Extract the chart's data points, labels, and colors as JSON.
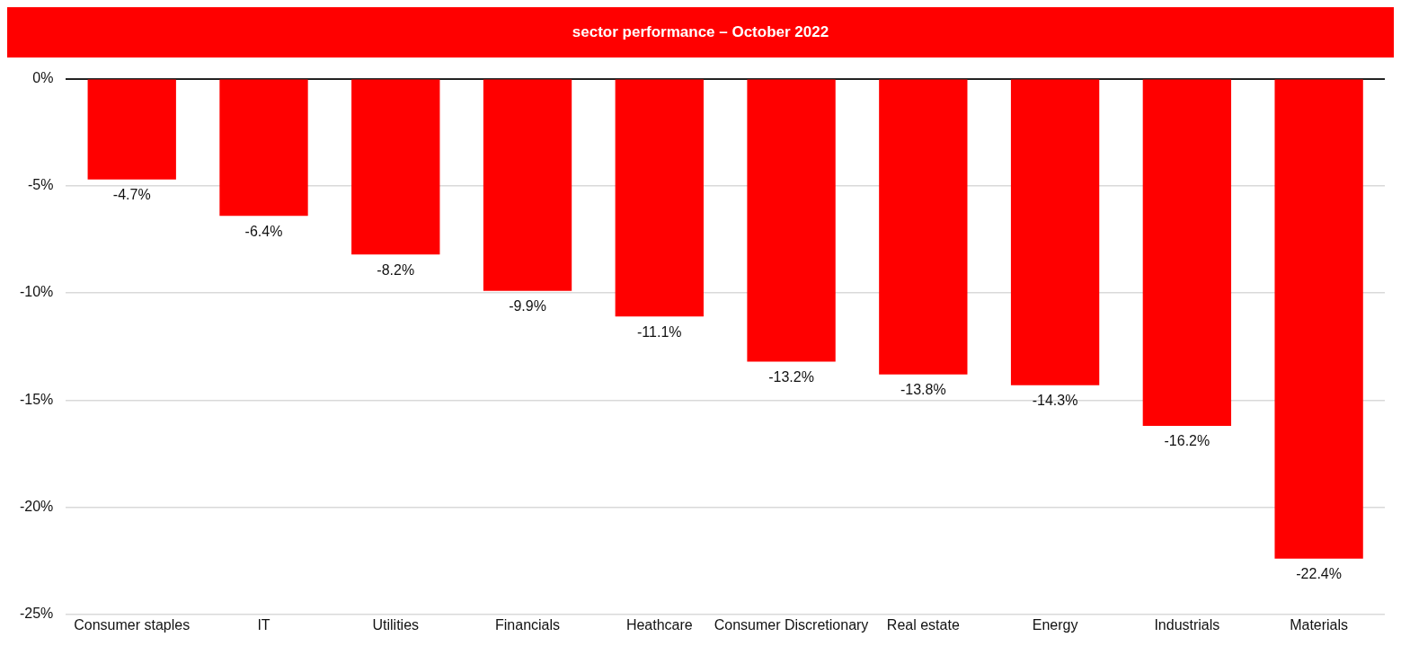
{
  "chart_data": {
    "type": "bar",
    "title": "sector performance – October 2022",
    "categories": [
      "Consumer staples",
      "IT",
      "Utilities",
      "Financials",
      "Heathcare",
      "Consumer Discretionary",
      "Real estate",
      "Energy",
      "Industrials",
      "Materials"
    ],
    "values": [
      -4.7,
      -6.4,
      -8.2,
      -9.9,
      -11.1,
      -13.2,
      -13.8,
      -14.3,
      -16.2,
      -22.4
    ],
    "value_labels": [
      "-4.7%",
      "-6.4%",
      "-8.2%",
      "-9.9%",
      "-11.1%",
      "-13.2%",
      "-13.8%",
      "-14.3%",
      "-16.2%",
      "-22.4%"
    ],
    "color": "#ff0000",
    "ylim": [
      -25,
      0
    ],
    "yticks": [
      {
        "value": 0,
        "label": "0%"
      },
      {
        "value": -5,
        "label": "-5%"
      },
      {
        "value": -10,
        "label": "-10%"
      },
      {
        "value": -15,
        "label": "-15%"
      },
      {
        "value": -20,
        "label": "-20%"
      },
      {
        "value": -25,
        "label": "-25%"
      }
    ],
    "grid": "y",
    "legend": false
  }
}
